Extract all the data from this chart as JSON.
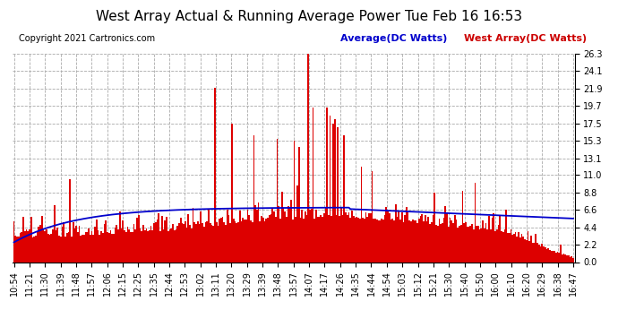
{
  "title": "West Array Actual & Running Average Power Tue Feb 16 16:53",
  "copyright": "Copyright 2021 Cartronics.com",
  "legend_avg": "Average(DC Watts)",
  "legend_west": "West Array(DC Watts)",
  "ylabel_right_ticks": [
    0.0,
    2.2,
    4.4,
    6.6,
    8.8,
    11.0,
    13.1,
    15.3,
    17.5,
    19.7,
    21.9,
    24.1,
    26.3
  ],
  "x_labels": [
    "10:54",
    "11:21",
    "11:30",
    "11:39",
    "11:48",
    "11:57",
    "12:06",
    "12:15",
    "12:25",
    "12:35",
    "12:44",
    "12:53",
    "13:02",
    "13:11",
    "13:20",
    "13:29",
    "13:39",
    "13:48",
    "13:57",
    "14:07",
    "14:17",
    "14:26",
    "14:35",
    "14:44",
    "14:54",
    "15:03",
    "15:12",
    "15:21",
    "15:30",
    "15:40",
    "15:50",
    "16:00",
    "16:10",
    "16:20",
    "16:29",
    "16:38",
    "16:47"
  ],
  "bar_color": "#dd0000",
  "avg_line_color": "#0000cc",
  "title_color": "#000000",
  "copyright_color": "#000000",
  "legend_avg_color": "#0000cc",
  "legend_west_color": "#cc0000",
  "background_color": "#ffffff",
  "grid_color": "#aaaaaa",
  "title_fontsize": 11,
  "copyright_fontsize": 7,
  "legend_fontsize": 8,
  "axis_fontsize": 7,
  "ylim": [
    0.0,
    26.3
  ],
  "bar_width": 1.0
}
